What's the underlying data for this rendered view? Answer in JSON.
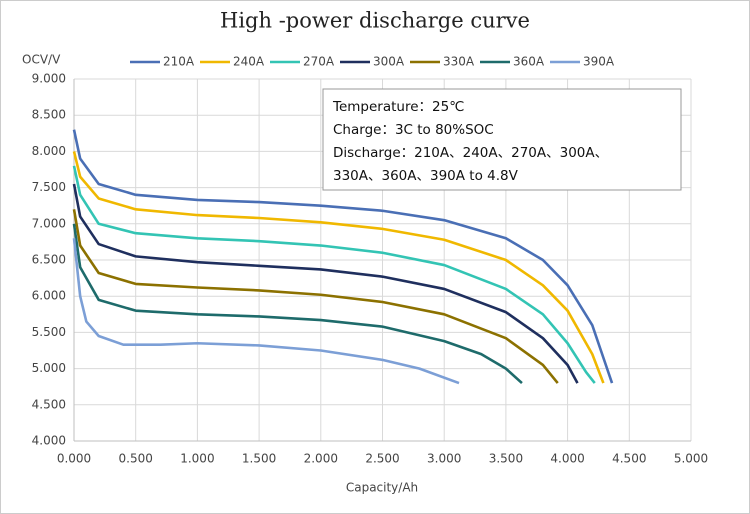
{
  "chart_data": {
    "type": "line",
    "title": "High -power discharge curve",
    "y_label": "OCV/V",
    "x_label": "Capacity/Ah",
    "annotation": [
      "Temperature：25℃",
      "Charge：3C to 80%SOC",
      "Discharge：210A、240A、270A、300A、",
      "330A、360A、390A  to 4.8V"
    ],
    "xlim": [
      0,
      5
    ],
    "ylim": [
      4,
      9
    ],
    "grid": true,
    "xticks": [
      {
        "value": 0,
        "label": "0.000"
      },
      {
        "value": 0.5,
        "label": "0.500"
      },
      {
        "value": 1,
        "label": "1.000"
      },
      {
        "value": 1.5,
        "label": "1.500"
      },
      {
        "value": 2,
        "label": "2.000"
      },
      {
        "value": 2.5,
        "label": "2.500"
      },
      {
        "value": 3,
        "label": "3.000"
      },
      {
        "value": 3.5,
        "label": "3.500"
      },
      {
        "value": 4,
        "label": "4.000"
      },
      {
        "value": 4.5,
        "label": "4.500"
      },
      {
        "value": 5,
        "label": "5.000"
      }
    ],
    "yticks": [
      {
        "value": 4,
        "label": "4.000"
      },
      {
        "value": 4.5,
        "label": "4.500"
      },
      {
        "value": 5,
        "label": "5.000"
      },
      {
        "value": 5.5,
        "label": "5.500"
      },
      {
        "value": 6,
        "label": "6.000"
      },
      {
        "value": 6.5,
        "label": "6.500"
      },
      {
        "value": 7,
        "label": "7.000"
      },
      {
        "value": 7.5,
        "label": "7.500"
      },
      {
        "value": 8,
        "label": "8.000"
      },
      {
        "value": 8.5,
        "label": "8.500"
      },
      {
        "value": 9,
        "label": "9.000"
      }
    ],
    "series": [
      {
        "name": "210A",
        "color": "#4a6fb5",
        "x": [
          0,
          0.05,
          0.2,
          0.5,
          1.0,
          1.5,
          2.0,
          2.5,
          3.0,
          3.5,
          3.8,
          4.0,
          4.2,
          4.3,
          4.36
        ],
        "values": [
          8.3,
          7.9,
          7.55,
          7.4,
          7.33,
          7.3,
          7.25,
          7.18,
          7.05,
          6.8,
          6.5,
          6.15,
          5.6,
          5.1,
          4.8
        ]
      },
      {
        "name": "240A",
        "color": "#f0b800",
        "x": [
          0,
          0.05,
          0.2,
          0.5,
          1.0,
          1.5,
          2.0,
          2.5,
          3.0,
          3.5,
          3.8,
          4.0,
          4.2,
          4.29
        ],
        "values": [
          8.0,
          7.65,
          7.35,
          7.2,
          7.12,
          7.08,
          7.02,
          6.93,
          6.78,
          6.5,
          6.15,
          5.8,
          5.2,
          4.8
        ]
      },
      {
        "name": "270A",
        "color": "#33c4b4",
        "x": [
          0,
          0.05,
          0.2,
          0.5,
          1.0,
          1.5,
          2.0,
          2.5,
          3.0,
          3.5,
          3.8,
          4.0,
          4.15,
          4.22
        ],
        "values": [
          7.8,
          7.4,
          7.0,
          6.87,
          6.8,
          6.76,
          6.7,
          6.6,
          6.43,
          6.1,
          5.75,
          5.35,
          4.95,
          4.8
        ]
      },
      {
        "name": "300A",
        "color": "#1f2f5e",
        "x": [
          0,
          0.05,
          0.2,
          0.5,
          1.0,
          1.5,
          2.0,
          2.5,
          3.0,
          3.5,
          3.8,
          4.0,
          4.08
        ],
        "values": [
          7.55,
          7.1,
          6.72,
          6.55,
          6.47,
          6.42,
          6.37,
          6.27,
          6.1,
          5.78,
          5.42,
          5.05,
          4.8
        ]
      },
      {
        "name": "330A",
        "color": "#8c7100",
        "x": [
          0,
          0.05,
          0.2,
          0.5,
          1.0,
          1.5,
          2.0,
          2.5,
          3.0,
          3.5,
          3.8,
          3.92
        ],
        "values": [
          7.2,
          6.7,
          6.32,
          6.17,
          6.12,
          6.08,
          6.02,
          5.92,
          5.75,
          5.42,
          5.05,
          4.8
        ]
      },
      {
        "name": "360A",
        "color": "#1e6b6b",
        "x": [
          0,
          0.05,
          0.2,
          0.5,
          1.0,
          1.5,
          2.0,
          2.5,
          3.0,
          3.3,
          3.5,
          3.63
        ],
        "values": [
          7.0,
          6.4,
          5.95,
          5.8,
          5.75,
          5.72,
          5.67,
          5.58,
          5.38,
          5.2,
          5.0,
          4.8
        ]
      },
      {
        "name": "390A",
        "color": "#7c9fd6",
        "x": [
          0,
          0.05,
          0.1,
          0.2,
          0.4,
          0.7,
          1.0,
          1.5,
          2.0,
          2.5,
          2.8,
          3.12
        ],
        "values": [
          6.8,
          6.0,
          5.65,
          5.45,
          5.33,
          5.33,
          5.35,
          5.32,
          5.25,
          5.12,
          5.0,
          4.8
        ]
      }
    ]
  }
}
